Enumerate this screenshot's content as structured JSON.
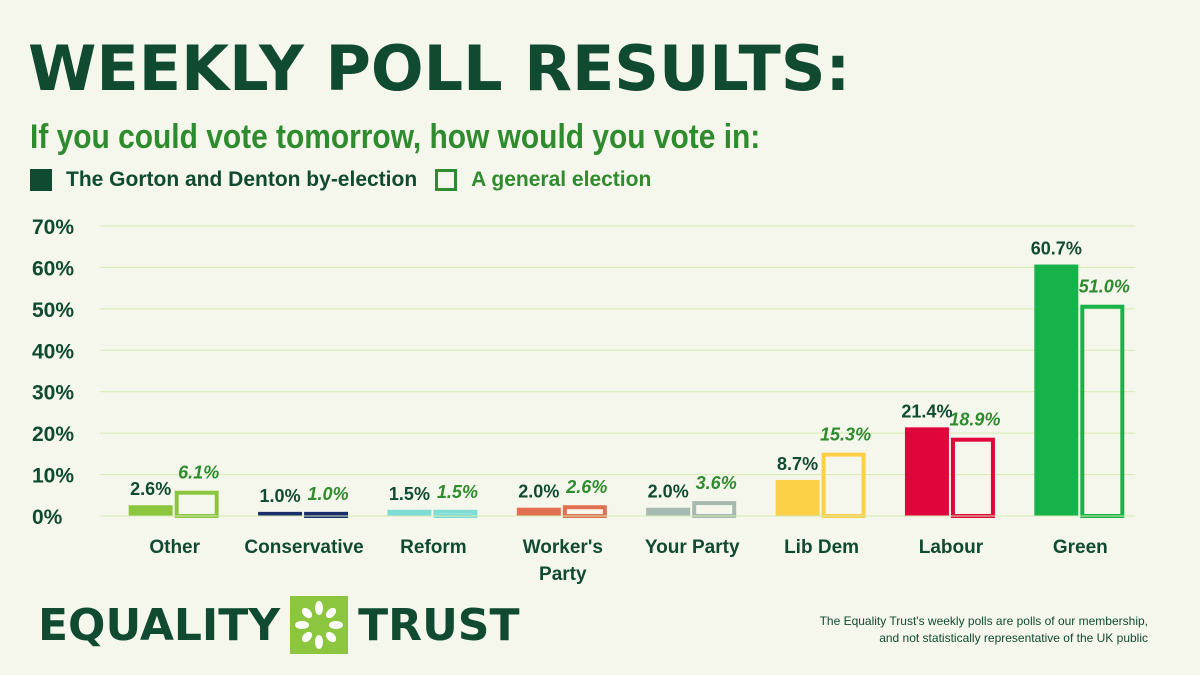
{
  "title": "WEEKLY POLL RESULTS:",
  "subtitle": "If you could vote tomorrow, how would you vote in:",
  "legend": {
    "series1": "The Gorton and Denton by-election",
    "series2": "A general election"
  },
  "chart_data": {
    "type": "bar",
    "title": "WEEKLY POLL RESULTS:",
    "categories": [
      "Other",
      "Conservative",
      "Reform",
      "Worker's Party",
      "Your Party",
      "Lib Dem",
      "Labour",
      "Green"
    ],
    "category_lines": [
      [
        "Other"
      ],
      [
        "Conservative"
      ],
      [
        "Reform"
      ],
      [
        "Worker's",
        "Party"
      ],
      [
        "Your Party"
      ],
      [
        "Lib Dem"
      ],
      [
        "Labour"
      ],
      [
        "Green"
      ]
    ],
    "colors": [
      "#8cc63f",
      "#1a2e6b",
      "#7ddcd6",
      "#e0704f",
      "#a7bab1",
      "#fdd04a",
      "#e0053a",
      "#18b24a"
    ],
    "series": [
      {
        "name": "The Gorton and Denton by-election",
        "style": "solid",
        "values": [
          2.6,
          1.0,
          1.5,
          2.0,
          2.0,
          8.7,
          21.4,
          60.7
        ],
        "labels": [
          "2.6%",
          "1.0%",
          "1.5%",
          "2.0%",
          "2.0%",
          "8.7%",
          "21.4%",
          "60.7%"
        ]
      },
      {
        "name": "A general election",
        "style": "outline",
        "values": [
          6.1,
          1.0,
          1.5,
          2.6,
          3.6,
          15.3,
          18.9,
          51.0
        ],
        "labels": [
          "6.1%",
          "1.0%",
          "1.5%",
          "2.6%",
          "3.6%",
          "15.3%",
          "18.9%",
          "51.0%"
        ]
      }
    ],
    "ylim": [
      0,
      70
    ],
    "yticks": [
      "0%",
      "10%",
      "20%",
      "30%",
      "40%",
      "50%",
      "60%",
      "70%"
    ],
    "grid": true,
    "xlabel": "",
    "ylabel": ""
  },
  "logo": {
    "left": "EQUALITY",
    "right": "TRUST"
  },
  "footnote": {
    "line1": "The Equality Trust's weekly polls are polls of our membership,",
    "line2": "and not statistically representative of the UK public"
  },
  "colors": {
    "dark_green": "#0f4a31",
    "mid_green": "#2e8b2e",
    "grid": "#d4eab0",
    "background": "#f6f7ec"
  }
}
